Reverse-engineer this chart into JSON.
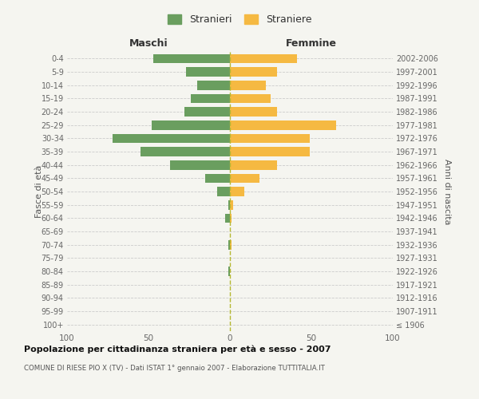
{
  "age_groups": [
    "100+",
    "95-99",
    "90-94",
    "85-89",
    "80-84",
    "75-79",
    "70-74",
    "65-69",
    "60-64",
    "55-59",
    "50-54",
    "45-49",
    "40-44",
    "35-39",
    "30-34",
    "25-29",
    "20-24",
    "15-19",
    "10-14",
    "5-9",
    "0-4"
  ],
  "birth_years": [
    "≤ 1906",
    "1907-1911",
    "1912-1916",
    "1917-1921",
    "1922-1926",
    "1927-1931",
    "1932-1936",
    "1937-1941",
    "1942-1946",
    "1947-1951",
    "1952-1956",
    "1957-1961",
    "1962-1966",
    "1967-1971",
    "1972-1976",
    "1977-1981",
    "1982-1986",
    "1987-1991",
    "1992-1996",
    "1997-2001",
    "2002-2006"
  ],
  "maschi": [
    0,
    0,
    0,
    0,
    1,
    0,
    1,
    0,
    3,
    1,
    8,
    15,
    37,
    55,
    72,
    48,
    28,
    24,
    20,
    27,
    47
  ],
  "femmine": [
    0,
    0,
    0,
    0,
    0,
    0,
    1,
    0,
    1,
    2,
    9,
    18,
    29,
    49,
    49,
    65,
    29,
    25,
    22,
    29,
    41
  ],
  "color_maschi": "#6a9e5f",
  "color_femmine": "#f5b942",
  "color_zero_line": "#b5b832",
  "xlim": 100,
  "title": "Popolazione per cittadinanza straniera per età e sesso - 2007",
  "subtitle": "COMUNE DI RIESE PIO X (TV) - Dati ISTAT 1° gennaio 2007 - Elaborazione TUTTITALIA.IT",
  "ylabel_left": "Fasce di età",
  "ylabel_right": "Anni di nascita",
  "xlabel_left": "Maschi",
  "xlabel_right": "Femmine",
  "legend_stranieri": "Stranieri",
  "legend_straniere": "Straniere",
  "bg_color": "#f5f5f0"
}
